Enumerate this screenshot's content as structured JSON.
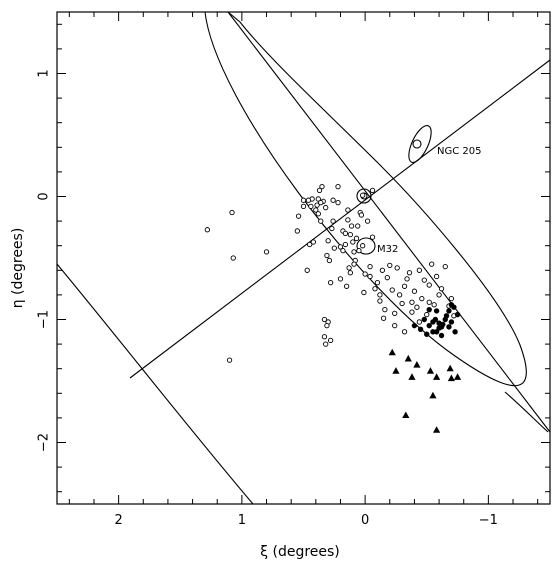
{
  "chart_data": {
    "type": "scatter",
    "title": "",
    "xlabel": "ξ (degrees)",
    "ylabel": "η (degrees)",
    "xlim": [
      2.5,
      -1.5
    ],
    "ylim": [
      -2.5,
      1.5
    ],
    "x_reversed": true,
    "x_ticks": [
      2,
      1,
      0,
      -1
    ],
    "x_tick_labels": [
      "2",
      "1",
      "0",
      "−1"
    ],
    "y_ticks": [
      -2,
      -1,
      0,
      1
    ],
    "y_tick_labels": [
      "−2",
      "−1",
      "0",
      "1"
    ],
    "grid": false,
    "legend": "none",
    "annotations": [
      {
        "label": "NGC 205",
        "x": 0.44,
        "y": 0.44
      },
      {
        "label": "M32",
        "x": 0.0,
        "y": -0.41
      }
    ],
    "series": [
      {
        "marker": "open-circle",
        "x": [
          1.28,
          1.08,
          1.07,
          1.1,
          0.8,
          0.55,
          0.54,
          0.5,
          0.47,
          0.45,
          0.44,
          0.43,
          0.42,
          0.4,
          0.39,
          0.38,
          0.37,
          0.36,
          0.35,
          0.34,
          0.33,
          0.32,
          0.31,
          0.3,
          0.29,
          0.28,
          0.27,
          0.26,
          0.25,
          0.22,
          0.2,
          0.18,
          0.16,
          0.15,
          0.14,
          0.13,
          0.12,
          0.11,
          0.1,
          0.09,
          0.08,
          0.07,
          0.06,
          0.05,
          0.04,
          0.03,
          0.02,
          0.01,
          0.0,
          -0.02,
          -0.04,
          -0.06,
          -0.08,
          -0.1,
          -0.12,
          -0.14,
          -0.16,
          -0.18,
          -0.2,
          -0.22,
          -0.24,
          -0.26,
          -0.28,
          -0.3,
          -0.32,
          -0.34,
          -0.36,
          -0.38,
          -0.4,
          -0.42,
          -0.44,
          -0.46,
          -0.48,
          -0.5,
          -0.52,
          -0.54,
          -0.56,
          -0.58,
          -0.6,
          -0.62,
          -0.65,
          -0.68,
          -0.7,
          -0.72,
          -0.06,
          0.02,
          0.22,
          0.16,
          -0.12,
          0.3,
          0.33,
          0.32,
          0.31,
          0.28,
          0.36,
          0.46,
          0.5,
          0.18,
          0.09,
          -0.24,
          -0.44,
          -0.32,
          -0.15,
          -0.04,
          0.38,
          0.12,
          0.26,
          0.2,
          0.14,
          -0.52,
          -0.38
        ],
        "y": [
          -0.27,
          -0.13,
          -0.5,
          -1.33,
          -0.45,
          -0.28,
          -0.16,
          -0.08,
          -0.6,
          -0.39,
          -0.08,
          -0.02,
          -0.37,
          -0.11,
          -0.07,
          -0.02,
          0.05,
          -0.2,
          0.08,
          -0.04,
          -1.0,
          -0.09,
          -0.48,
          -0.36,
          -0.52,
          -0.7,
          -0.26,
          -0.2,
          -0.42,
          -0.05,
          -0.41,
          -0.28,
          -0.39,
          -0.73,
          -0.11,
          -0.58,
          -0.31,
          -0.24,
          -0.37,
          -0.45,
          -0.52,
          -0.34,
          -0.24,
          -0.44,
          -0.13,
          -0.15,
          -0.4,
          -0.78,
          -0.63,
          -0.2,
          -0.57,
          -0.33,
          -0.75,
          -0.7,
          -0.85,
          -0.6,
          -0.92,
          -0.66,
          -0.56,
          -0.76,
          -0.95,
          -0.58,
          -0.8,
          -0.87,
          -0.73,
          -0.67,
          -0.62,
          -0.86,
          -0.77,
          -0.9,
          -0.6,
          -0.83,
          -0.68,
          -0.96,
          -0.72,
          -0.55,
          -0.88,
          -0.65,
          -0.8,
          -0.75,
          -0.57,
          -0.89,
          -0.83,
          -0.97,
          0.05,
          0.01,
          0.08,
          -0.3,
          -0.8,
          -1.02,
          -1.14,
          -1.2,
          -1.05,
          -1.17,
          -0.05,
          -0.03,
          -0.03,
          -0.44,
          -0.55,
          -1.05,
          -1.02,
          -1.1,
          -0.99,
          -0.65,
          -0.14,
          -0.62,
          -0.03,
          -0.67,
          -0.19,
          -0.86,
          -0.94
        ]
      },
      {
        "marker": "filled-circle",
        "x": [
          -0.4,
          -0.45,
          -0.48,
          -0.5,
          -0.52,
          -0.55,
          -0.57,
          -0.58,
          -0.6,
          -0.62,
          -0.63,
          -0.65,
          -0.66,
          -0.68,
          -0.7,
          -0.72,
          -0.73,
          -0.75,
          -0.52,
          -0.58,
          -0.62,
          -0.68,
          -0.7,
          -0.6,
          -0.55
        ],
        "y": [
          -1.05,
          -1.08,
          -1.0,
          -1.12,
          -1.05,
          -1.02,
          -1.0,
          -1.1,
          -1.07,
          -1.13,
          -1.04,
          -1.0,
          -0.97,
          -1.06,
          -1.02,
          -0.9,
          -1.1,
          -0.96,
          -0.92,
          -0.93,
          -1.06,
          -0.93,
          -0.88,
          -1.03,
          -1.1
        ]
      },
      {
        "marker": "filled-triangle",
        "x": [
          -0.22,
          -0.35,
          -0.42,
          -0.25,
          -0.38,
          -0.53,
          -0.58,
          -0.69,
          -0.7,
          -0.75,
          -0.33,
          -0.55,
          -0.58
        ],
        "y": [
          -1.27,
          -1.32,
          -1.37,
          -1.42,
          -1.47,
          -1.42,
          -1.47,
          -1.4,
          -1.48,
          -1.47,
          -1.78,
          -1.62,
          -1.9
        ]
      }
    ]
  }
}
